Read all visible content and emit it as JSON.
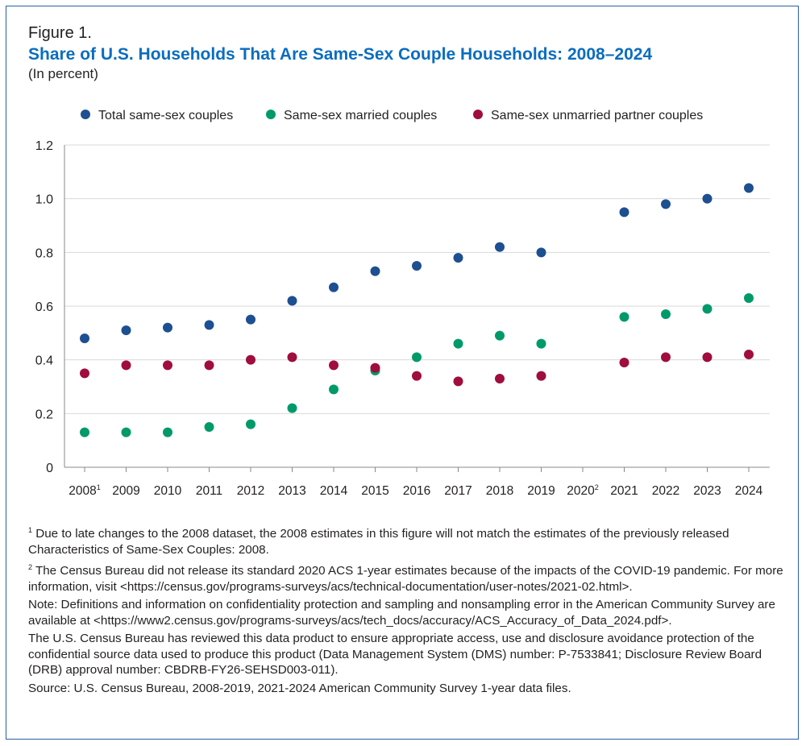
{
  "figure_label": "Figure 1.",
  "chart_data": {
    "type": "scatter",
    "title": "Share of U.S. Households That Are Same-Sex Couple Households: 2008–2024",
    "subtitle": "(In percent)",
    "xlabel": "",
    "ylabel": "",
    "ylim": [
      0,
      1.2
    ],
    "yticks": [
      "0",
      "0.2",
      "0.4",
      "0.6",
      "0.8",
      "1.0",
      "1.2"
    ],
    "ytick_values": [
      0,
      0.2,
      0.4,
      0.6,
      0.8,
      1.0,
      1.2
    ],
    "categories": [
      "2008",
      "2009",
      "2010",
      "2011",
      "2012",
      "2013",
      "2014",
      "2015",
      "2016",
      "2017",
      "2018",
      "2019",
      "2020",
      "2021",
      "2022",
      "2023",
      "2024"
    ],
    "category_superscripts": {
      "0": "1",
      "12": "2"
    },
    "grid": true,
    "legend_position": "top",
    "series": [
      {
        "name": "Total same-sex couples",
        "color": "#1d4f91",
        "values": [
          0.48,
          0.51,
          0.52,
          0.53,
          0.55,
          0.62,
          0.67,
          0.73,
          0.75,
          0.78,
          0.82,
          0.8,
          null,
          0.95,
          0.98,
          1.0,
          1.04
        ]
      },
      {
        "name": "Same-sex married couples",
        "color": "#009a6a",
        "values": [
          0.13,
          0.13,
          0.13,
          0.15,
          0.16,
          0.22,
          0.29,
          0.36,
          0.41,
          0.46,
          0.49,
          0.46,
          null,
          0.56,
          0.57,
          0.59,
          0.63
        ]
      },
      {
        "name": "Same-sex unmarried partner couples",
        "color": "#a00d3f",
        "values": [
          0.35,
          0.38,
          0.38,
          0.38,
          0.4,
          0.41,
          0.38,
          0.37,
          0.34,
          0.32,
          0.33,
          0.34,
          null,
          0.39,
          0.41,
          0.41,
          0.42
        ]
      }
    ]
  },
  "notes": [
    {
      "sup": "1",
      "text": " Due to late changes to the 2008 dataset, the 2008 estimates in this figure will not match the estimates of the previously released Characteristics of Same-Sex Couples: 2008."
    },
    {
      "sup": "2",
      "text": " The Census Bureau did not release its standard 2020 ACS 1-year estimates because of the impacts of the COVID-19 pandemic. For more information, visit <https://census.gov/programs-surveys/acs/technical-documentation/user-notes/2021-02.html>."
    },
    {
      "sup": "",
      "text": "Note: Definitions and information on confidentiality protection and sampling and nonsampling error in the American Community Survey are available at <https://www2.census.gov/programs-surveys/acs/tech_docs/accuracy/ACS_Accuracy_of_Data_2024.pdf>."
    },
    {
      "sup": "",
      "text": "The U.S. Census Bureau has reviewed this data product to ensure appropriate access, use and disclosure avoidance protection of the confidential source data used to produce this product (Data Management System (DMS) number: P-7533841; Disclosure Review Board (DRB) approval number: CBDRB-FY26-SEHSD003-011)."
    },
    {
      "sup": "",
      "text": "Source: U.S. Census Bureau, 2008-2019, 2021-2024 American Community Survey 1-year data files."
    }
  ]
}
